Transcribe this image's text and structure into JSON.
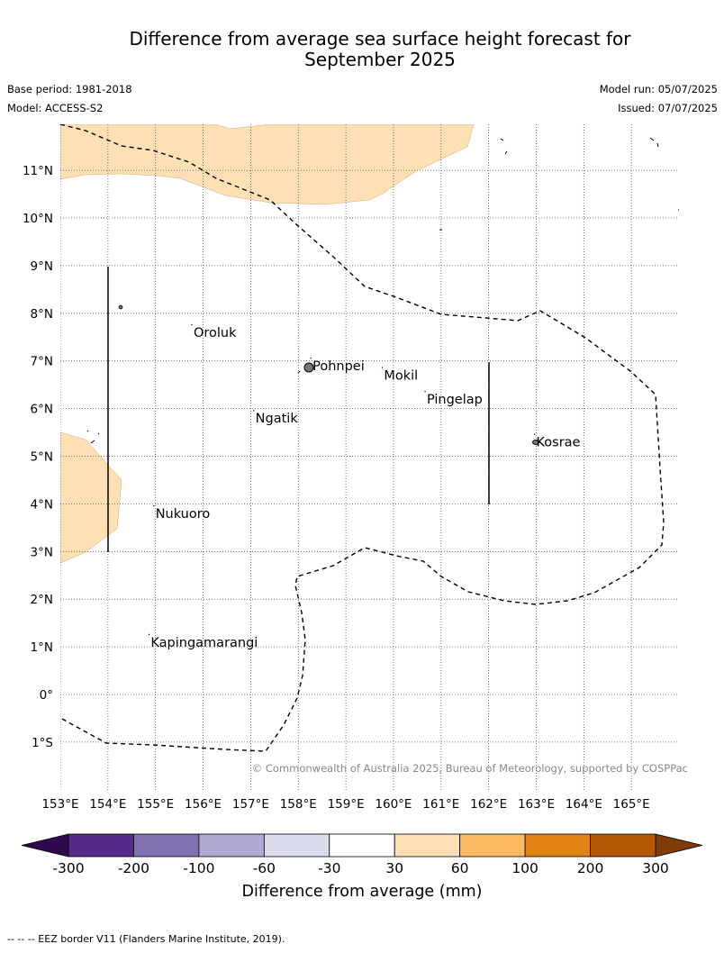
{
  "title_line1": "Difference from average sea surface height forecast for",
  "title_line2": "September 2025",
  "base_period": "Base period: 1981-2018",
  "model": "Model: ACCESS-S2",
  "model_run": "Model run: 05/07/2025",
  "issued": "Issued: 07/07/2025",
  "copyright": "© Commonwealth of Australia 2025, Bureau of Meteorology, supported by COSPPac",
  "lon_labels": [
    "153°E",
    "154°E",
    "155°E",
    "156°E",
    "157°E",
    "158°E",
    "159°E",
    "160°E",
    "161°E",
    "162°E",
    "163°E",
    "164°E",
    "165°E"
  ],
  "lat_labels": [
    "11°N",
    "10°N",
    "9°N",
    "8°N",
    "7°N",
    "6°N",
    "5°N",
    "4°N",
    "3°N",
    "2°N",
    "1°N",
    "0°",
    "1°S"
  ],
  "places": [
    {
      "name": "Oroluk",
      "lon": 155.8,
      "lat": 7.6
    },
    {
      "name": "Pohnpei",
      "lon": 158.3,
      "lat": 6.9
    },
    {
      "name": "Mokil",
      "lon": 159.8,
      "lat": 6.7
    },
    {
      "name": "Pingelap",
      "lon": 160.7,
      "lat": 6.2
    },
    {
      "name": "Ngatik",
      "lon": 157.1,
      "lat": 5.8
    },
    {
      "name": "Kosrae",
      "lon": 163.0,
      "lat": 5.3
    },
    {
      "name": "Nukuoro",
      "lon": 155.0,
      "lat": 3.8
    },
    {
      "name": "Kapingamarangi",
      "lon": 154.9,
      "lat": 1.1
    }
  ],
  "colorbar": {
    "tick_labels": [
      "-300",
      "-200",
      "-100",
      "-60",
      "-30",
      "30",
      "60",
      "100",
      "200",
      "300"
    ],
    "colors": [
      "#552a8a",
      "#7f72ae",
      "#b1a9d2",
      "#dadbec",
      "#ffffff",
      "#fee0b4",
      "#fdb863",
      "#e08214",
      "#b35806"
    ],
    "low_extend_color": "#2d0a4e",
    "high_extend_color": "#7f3b08",
    "label": "Difference from average (mm)"
  },
  "footnote": "--  --  -- EEZ border V11 (Flanders Marine Institute, 2019)."
}
